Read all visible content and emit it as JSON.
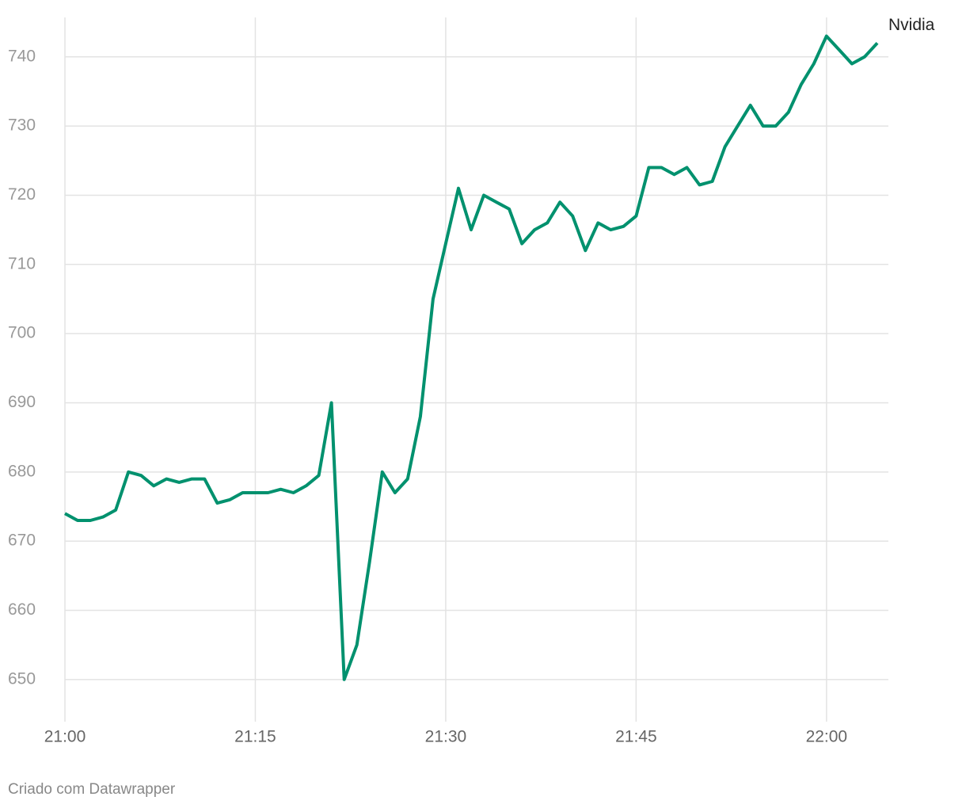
{
  "chart_data": {
    "type": "line",
    "x": [
      "21:00",
      "21:01",
      "21:02",
      "21:03",
      "21:04",
      "21:05",
      "21:06",
      "21:07",
      "21:08",
      "21:09",
      "21:10",
      "21:11",
      "21:12",
      "21:13",
      "21:14",
      "21:15",
      "21:16",
      "21:17",
      "21:18",
      "21:19",
      "21:20",
      "21:21",
      "21:22",
      "21:23",
      "21:24",
      "21:25",
      "21:26",
      "21:27",
      "21:28",
      "21:29",
      "21:30",
      "21:31",
      "21:32",
      "21:33",
      "21:34",
      "21:35",
      "21:36",
      "21:37",
      "21:38",
      "21:39",
      "21:40",
      "21:41",
      "21:42",
      "21:43",
      "21:44",
      "21:45",
      "21:46",
      "21:47",
      "21:48",
      "21:49",
      "21:50",
      "21:51",
      "21:52",
      "21:53",
      "21:54",
      "21:55",
      "21:56",
      "21:57",
      "21:58",
      "21:59",
      "22:00",
      "22:01",
      "22:02",
      "22:03",
      "22:04"
    ],
    "series": [
      {
        "name": "Nvidia",
        "color": "#00916e",
        "values": [
          674,
          673,
          673,
          673.5,
          674.5,
          680,
          679.5,
          678,
          679,
          678.5,
          679,
          679,
          675.5,
          676,
          677,
          677,
          677,
          677.5,
          677,
          678,
          679.5,
          690,
          650,
          655,
          667,
          680,
          677,
          679,
          688,
          705,
          713,
          721,
          715,
          720,
          719,
          718,
          713,
          715,
          716,
          719,
          717,
          712,
          716,
          715,
          715.5,
          717,
          724,
          724,
          723,
          724,
          721.5,
          722,
          727,
          730,
          733,
          730,
          730,
          732,
          736,
          739,
          743,
          741,
          739,
          740,
          742
        ]
      }
    ],
    "xlim": [
      "21:00",
      "22:05"
    ],
    "xticks": [
      "21:00",
      "21:15",
      "21:30",
      "21:45",
      "22:00"
    ],
    "ylim": [
      644.6,
      745.7
    ],
    "yticks": [
      650,
      660,
      670,
      680,
      690,
      700,
      710,
      720,
      730,
      740
    ],
    "grid": true,
    "footer": "Criado com Datawrapper"
  }
}
